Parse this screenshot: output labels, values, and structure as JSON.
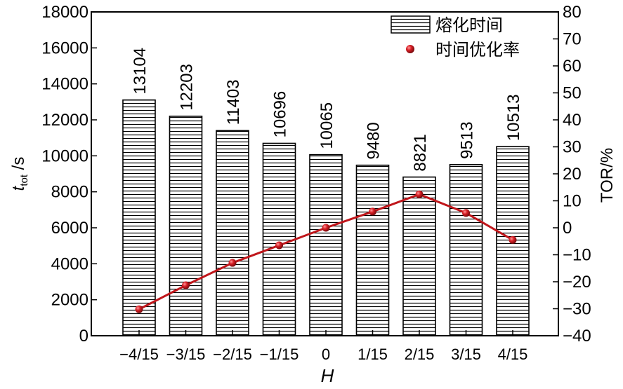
{
  "chart_data": {
    "type": "bar",
    "categories": [
      "−4/15",
      "−3/15",
      "−2/15",
      "−1/15",
      "0",
      "1/15",
      "2/15",
      "3/15",
      "4/15"
    ],
    "series": [
      {
        "name": "熔化时间",
        "type": "bar",
        "axis": "left",
        "values": [
          13104,
          12203,
          11403,
          10696,
          10065,
          9480,
          8821,
          9513,
          10513
        ],
        "data_labels": [
          "13104",
          "12203",
          "11403",
          "10696",
          "10065",
          "9480",
          "8821",
          "9513",
          "10513"
        ]
      },
      {
        "name": "时间优化率",
        "type": "line",
        "axis": "right",
        "color": "#c0161b",
        "values": [
          -30.2,
          -21.3,
          -13.0,
          -6.5,
          0,
          6.0,
          12.4,
          5.5,
          -4.5
        ]
      }
    ],
    "xlabel": "H",
    "ylabel_main": "t",
    "ylabel_sub": "tot",
    "ylabel_unit": " /s",
    "y2label": "TOR/%",
    "ylim": [
      0,
      18000
    ],
    "y2lim": [
      -40,
      80
    ],
    "yticks": [
      "0",
      "2000",
      "4000",
      "6000",
      "8000",
      "10000",
      "12000",
      "14000",
      "16000",
      "18000"
    ],
    "y2ticks": [
      "−40",
      "−30",
      "−20",
      "−10",
      "0",
      "10",
      "20",
      "30",
      "40",
      "50",
      "60",
      "70",
      "80"
    ],
    "legend_position": "top-right",
    "grid": false
  }
}
